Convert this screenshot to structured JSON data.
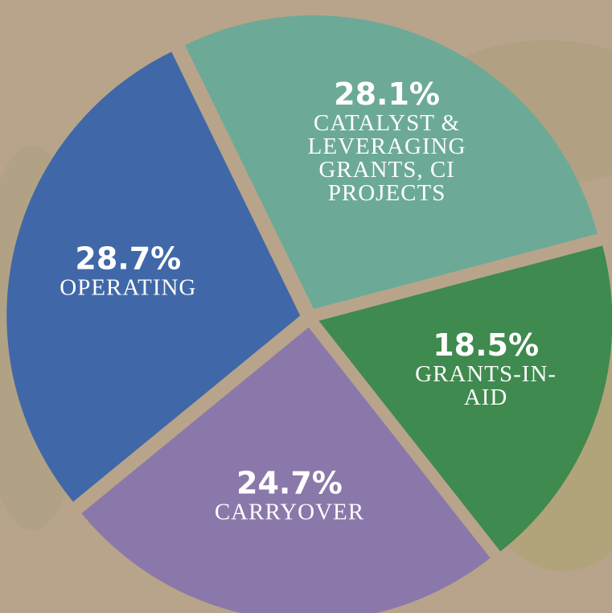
{
  "chart_data": {
    "type": "pie",
    "categories": [
      "CATALYST & LEVERAGING GRANTS, CI PROJECTS",
      "GRANTS-IN-AID",
      "CARRYOVER",
      "OPERATING"
    ],
    "values": [
      28.1,
      18.5,
      24.7,
      28.7
    ],
    "value_labels": [
      "28.1%",
      "18.5%",
      "24.7%",
      "28.7%"
    ],
    "colors": [
      "#6caa97",
      "#3f8a4e",
      "#8b78aa",
      "#4068a8"
    ]
  }
}
